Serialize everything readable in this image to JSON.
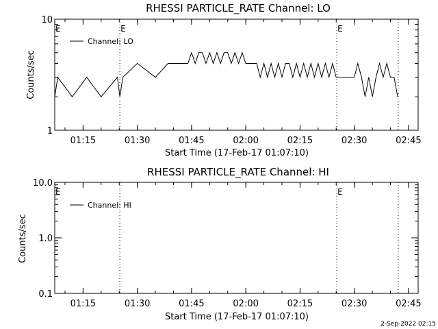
{
  "chart_data": [
    {
      "type": "line",
      "title": "RHESSI PARTICLE_RATE Channel: LO",
      "xlabel": "Start Time (17-Feb-17 01:07:10)",
      "ylabel": "Counts/sec",
      "yscale": "log",
      "ylim": [
        1,
        10
      ],
      "y_tick_labels": [
        "1",
        "10"
      ],
      "x_tick_labels": [
        "01:15",
        "01:30",
        "01:45",
        "02:00",
        "02:15",
        "02:30",
        "02:45"
      ],
      "xlim": [
        "01:07:10",
        "02:47:40"
      ],
      "legend": {
        "entries": [
          "Channel: LO"
        ],
        "placement": "top-left"
      },
      "markers": [
        {
          "label": "E",
          "x": "01:25:10",
          "style": "dotted"
        },
        {
          "label": "E",
          "x": "02:25:10",
          "style": "dotted"
        },
        {
          "label": "",
          "x": "02:42:10",
          "style": "dotted"
        }
      ],
      "edge_labels": [
        {
          "label": "E",
          "x": "01:07:10"
        }
      ],
      "series": [
        {
          "name": "Channel: LO",
          "x": [
            "01:07:10",
            "01:08:00",
            "01:12:00",
            "01:16:00",
            "01:20:00",
            "01:24:30",
            "01:25:10",
            "01:26:00",
            "01:30:00",
            "01:35:00",
            "01:38:30",
            "01:40:00",
            "01:42:00",
            "01:43:00",
            "01:44:00",
            "01:45:00",
            "01:46:00",
            "01:47:00",
            "01:48:00",
            "01:49:00",
            "01:50:00",
            "01:51:00",
            "01:52:00",
            "01:53:00",
            "01:54:00",
            "01:55:00",
            "01:56:00",
            "01:57:00",
            "01:58:00",
            "01:59:00",
            "02:00:00",
            "02:01:00",
            "02:02:00",
            "02:03:00",
            "02:04:00",
            "02:05:00",
            "02:06:00",
            "02:07:00",
            "02:08:00",
            "02:09:00",
            "02:10:00",
            "02:11:00",
            "02:12:00",
            "02:13:00",
            "02:14:00",
            "02:15:00",
            "02:16:00",
            "02:17:00",
            "02:18:00",
            "02:19:00",
            "02:20:00",
            "02:21:00",
            "02:22:00",
            "02:23:00",
            "02:24:00",
            "02:25:00",
            "02:26:00",
            "02:28:00",
            "02:30:00",
            "02:31:00",
            "02:32:00",
            "02:33:00",
            "02:34:00",
            "02:35:00",
            "02:36:00",
            "02:37:00",
            "02:38:00",
            "02:39:00",
            "02:40:00",
            "02:41:00",
            "02:42:00"
          ],
          "y": [
            2,
            3,
            2,
            3,
            2,
            3,
            2,
            3,
            4,
            3,
            4,
            4,
            4,
            4,
            4,
            5,
            4,
            5,
            5,
            4,
            5,
            4,
            5,
            4,
            5,
            5,
            4,
            5,
            4,
            5,
            4,
            4,
            4,
            4,
            3,
            4,
            3,
            4,
            3,
            4,
            3,
            4,
            4,
            3,
            4,
            3,
            4,
            3,
            4,
            3,
            4,
            3,
            4,
            3,
            4,
            3,
            3,
            3,
            3,
            4,
            3,
            2,
            3,
            2,
            3,
            4,
            3,
            4,
            3,
            3,
            2
          ]
        }
      ]
    },
    {
      "type": "line",
      "title": "RHESSI PARTICLE_RATE Channel: HI",
      "xlabel": "Start Time (17-Feb-17 01:07:10)",
      "ylabel": "Counts/sec",
      "yscale": "log",
      "ylim": [
        0.1,
        10.0
      ],
      "y_tick_labels": [
        "0.1",
        "1.0",
        "10.0"
      ],
      "x_tick_labels": [
        "01:15",
        "01:30",
        "01:45",
        "02:00",
        "02:15",
        "02:30",
        "02:45"
      ],
      "xlim": [
        "01:07:10",
        "02:47:40"
      ],
      "legend": {
        "entries": [
          "Channel: HI"
        ],
        "placement": "top-left"
      },
      "markers": [
        {
          "label": "E",
          "x": "02:25:10",
          "style": "dotted"
        },
        {
          "label": "",
          "x": "01:25:10",
          "style": "dotted"
        },
        {
          "label": "",
          "x": "02:42:10",
          "style": "dotted"
        }
      ],
      "edge_labels": [
        {
          "label": "E",
          "x": "01:07:10"
        }
      ],
      "series": [
        {
          "name": "Channel: HI",
          "x": [],
          "y": []
        }
      ]
    }
  ],
  "footer": {
    "date_stamp": "2-Sep-2022 02:15"
  }
}
